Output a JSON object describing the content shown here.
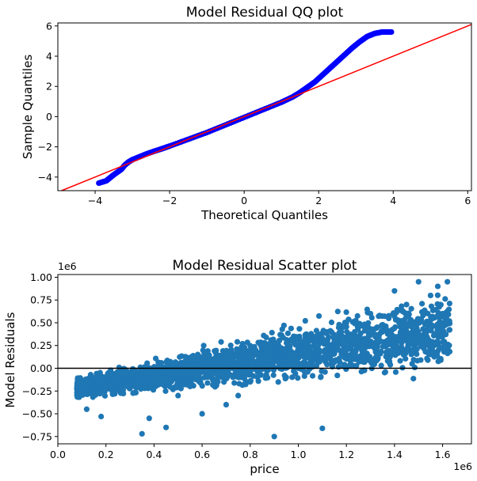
{
  "chart_data": [
    {
      "type": "scatter",
      "title": "Model Residual QQ plot",
      "xlabel": "Theoretical Quantiles",
      "ylabel": "Sample Quantiles",
      "xlim": [
        -5,
        6.1
      ],
      "ylim": [
        -4.9,
        6.2
      ],
      "xticks": [
        -4,
        -2,
        0,
        2,
        4,
        6
      ],
      "yticks": [
        -4,
        -2,
        0,
        2,
        4,
        6
      ],
      "marker_color": "#0000ff",
      "reference_line": {
        "slope": 1,
        "intercept": 0,
        "color": "#ff0000"
      },
      "series": [
        {
          "x": [
            -3.9,
            -3.7,
            -3.6,
            -3.5,
            -3.3,
            -3.2,
            -3.1,
            -3.0,
            -2.8,
            -2.6,
            -2.4,
            -2.2,
            -2.0,
            -1.5,
            -1.0,
            -0.5,
            0.0,
            0.5,
            1.0,
            1.3,
            1.5,
            1.7,
            1.9,
            2.1,
            2.3,
            2.5,
            2.7,
            2.9,
            3.1,
            3.3,
            3.5,
            3.7,
            3.95
          ],
          "y": [
            -4.4,
            -4.25,
            -4.05,
            -3.85,
            -3.5,
            -3.2,
            -3.0,
            -2.85,
            -2.65,
            -2.45,
            -2.28,
            -2.12,
            -1.95,
            -1.5,
            -1.05,
            -0.55,
            -0.05,
            0.45,
            0.95,
            1.3,
            1.6,
            1.95,
            2.3,
            2.75,
            3.2,
            3.65,
            4.1,
            4.55,
            4.95,
            5.3,
            5.5,
            5.6,
            5.6
          ]
        }
      ]
    },
    {
      "type": "scatter",
      "title": "Model Residual Scatter plot",
      "xlabel": "price",
      "ylabel": "Model Residuals",
      "xlim": [
        0,
        1.72
      ],
      "ylim": [
        -0.83,
        1.03
      ],
      "x_offset_label": "1e6",
      "y_offset_label": "1e6",
      "xticks": [
        "0.0",
        "0.2",
        "0.4",
        "0.6",
        "0.8",
        "1.0",
        "1.2",
        "1.4",
        "1.6"
      ],
      "yticks": [
        "−0.75",
        "−0.50",
        "−0.25",
        "0.00",
        "0.25",
        "0.50",
        "0.75",
        "1.00"
      ],
      "marker_color": "#1f77b4",
      "reference_line": {
        "y": 0,
        "color": "#000000"
      },
      "series": [
        {
          "x": [
            0.08,
            0.12,
            0.18,
            0.22,
            0.3,
            0.35,
            0.38,
            0.45,
            0.5,
            0.55,
            0.6,
            0.7,
            0.75,
            0.8,
            0.9,
            0.95,
            1.0,
            1.05,
            1.1,
            1.15,
            1.2,
            1.25,
            1.3,
            1.35,
            1.4,
            1.45,
            1.5,
            1.55,
            1.58,
            1.6,
            1.62
          ],
          "y": [
            -0.3,
            -0.45,
            -0.53,
            -0.2,
            -0.15,
            -0.72,
            -0.55,
            -0.65,
            -0.3,
            -0.2,
            -0.5,
            -0.4,
            -0.3,
            -0.15,
            -0.75,
            -0.1,
            0.0,
            0.1,
            -0.66,
            0.3,
            0.5,
            0.45,
            0.6,
            0.4,
            0.85,
            0.7,
            0.95,
            0.8,
            0.9,
            0.6,
            0.95
          ]
        }
      ]
    }
  ]
}
